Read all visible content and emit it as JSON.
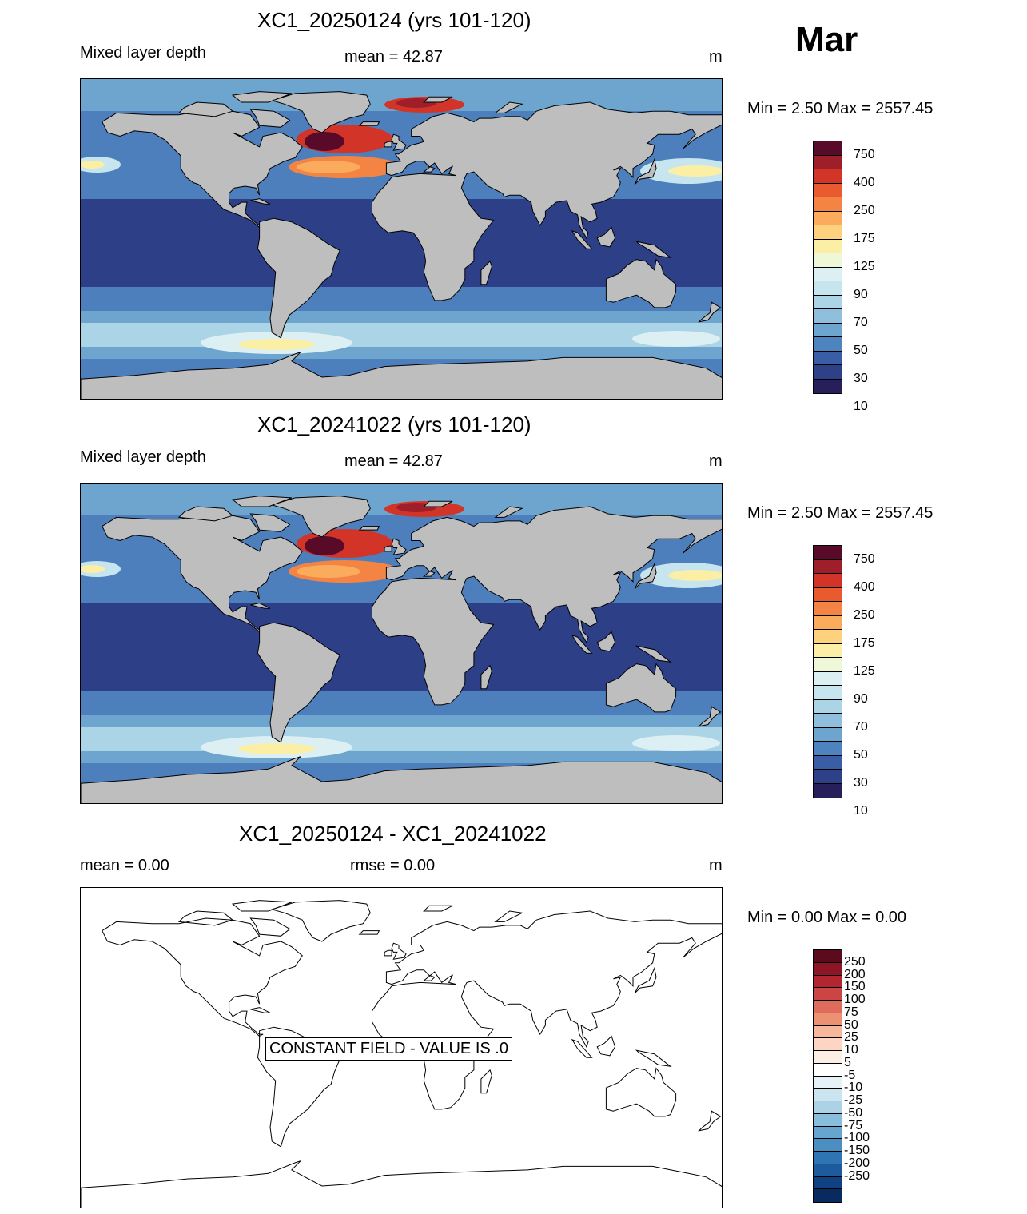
{
  "month": "Mar",
  "panels": [
    {
      "title": "XC1_20250124 (yrs 101-120)",
      "left": "Mixed layer depth",
      "center": "mean =  42.87",
      "right": "m",
      "minmax": "Min =   2.50 Max = 2557.45"
    },
    {
      "title": "XC1_20241022 (yrs 101-120)",
      "left": "Mixed layer depth",
      "center": "mean =  42.87",
      "right": "m",
      "minmax": "Min =   2.50 Max = 2557.45"
    },
    {
      "title": "XC1_20250124 - XC1_20241022",
      "left": "mean =   0.00",
      "center": "rmse =   0.00",
      "right": "m",
      "minmax": "Min =   0.00 Max =   0.00",
      "notice": "CONSTANT FIELD - VALUE IS .0"
    }
  ],
  "colorbar_mld": {
    "colors": [
      "#5a0a29",
      "#9e1f2a",
      "#d23428",
      "#e95b2f",
      "#f38443",
      "#fbab5c",
      "#fdd17e",
      "#fbefa6",
      "#eef7d7",
      "#dcf0f4",
      "#c6e5ef",
      "#abd4e7",
      "#8fbfdd",
      "#6da5cf",
      "#4d84bf",
      "#3a5ea5",
      "#2d4088",
      "#271f5a"
    ],
    "labels": [
      "750",
      "400",
      "250",
      "175",
      "125",
      "90",
      "70",
      "50",
      "30",
      "10"
    ]
  },
  "colorbar_diff": {
    "colors": [
      "#5c0a1e",
      "#8e1526",
      "#b42532",
      "#cc4545",
      "#de6b5b",
      "#ec9273",
      "#f6b79b",
      "#fcd6c2",
      "#fdeee4",
      "#ffffff",
      "#e6f1f8",
      "#cbe4f0",
      "#abd2e7",
      "#89bddc",
      "#66a5cf",
      "#4a8ec2",
      "#2f75b3",
      "#1d5b9d",
      "#104283",
      "#082a5e"
    ],
    "labels": [
      "250",
      "200",
      "150",
      "100",
      "75",
      "50",
      "25",
      "10",
      "5",
      "-5",
      "-10",
      "-25",
      "-50",
      "-75",
      "-100",
      "-150",
      "-200",
      "-250"
    ]
  },
  "colors": {
    "land": "#bebebe",
    "ocean_deep": "#2d3f86",
    "ocean_mid": "#4d7fbd",
    "ocean_light": "#abd4e7",
    "hot": "#d23428",
    "warm": "#fbab5c",
    "cream": "#fbefa6"
  }
}
